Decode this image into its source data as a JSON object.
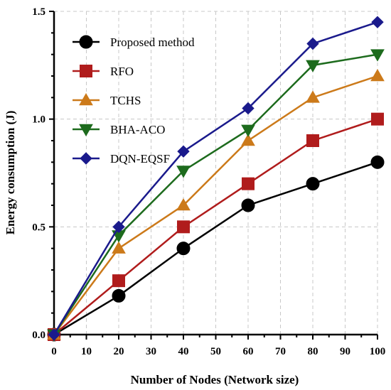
{
  "chart_data": {
    "type": "line",
    "title": "",
    "xlabel": "Number of Nodes (Network size)",
    "ylabel": "Energy consumption (J)",
    "xlim": [
      0,
      100
    ],
    "ylim": [
      0,
      1.5
    ],
    "x_ticks": [
      "0",
      "10",
      "20",
      "30",
      "40",
      "50",
      "60",
      "70",
      "80",
      "90",
      "100"
    ],
    "y_ticks": [
      "0.0",
      "0.5",
      "1.0",
      "1.5"
    ],
    "grid": true,
    "legend_position": "top-left",
    "x": [
      0,
      20,
      40,
      60,
      80,
      100
    ],
    "series": [
      {
        "name": "Proposed method",
        "values": [
          0,
          0.18,
          0.4,
          0.6,
          0.7,
          0.8
        ],
        "color": "#000000",
        "marker": "circle"
      },
      {
        "name": "RFO",
        "values": [
          0,
          0.25,
          0.5,
          0.7,
          0.9,
          1.0
        ],
        "color": "#b01c1c",
        "marker": "square"
      },
      {
        "name": "TCHS",
        "values": [
          0,
          0.4,
          0.6,
          0.9,
          1.1,
          1.2
        ],
        "color": "#cc7a1a",
        "marker": "triangle-up"
      },
      {
        "name": "BHA-ACO",
        "values": [
          0,
          0.46,
          0.76,
          0.95,
          1.25,
          1.3
        ],
        "color": "#1d6b1d",
        "marker": "triangle-down"
      },
      {
        "name": "DQN-EQSF",
        "values": [
          0,
          0.5,
          0.85,
          1.05,
          1.35,
          1.45
        ],
        "color": "#1a1a8c",
        "marker": "diamond"
      }
    ]
  }
}
